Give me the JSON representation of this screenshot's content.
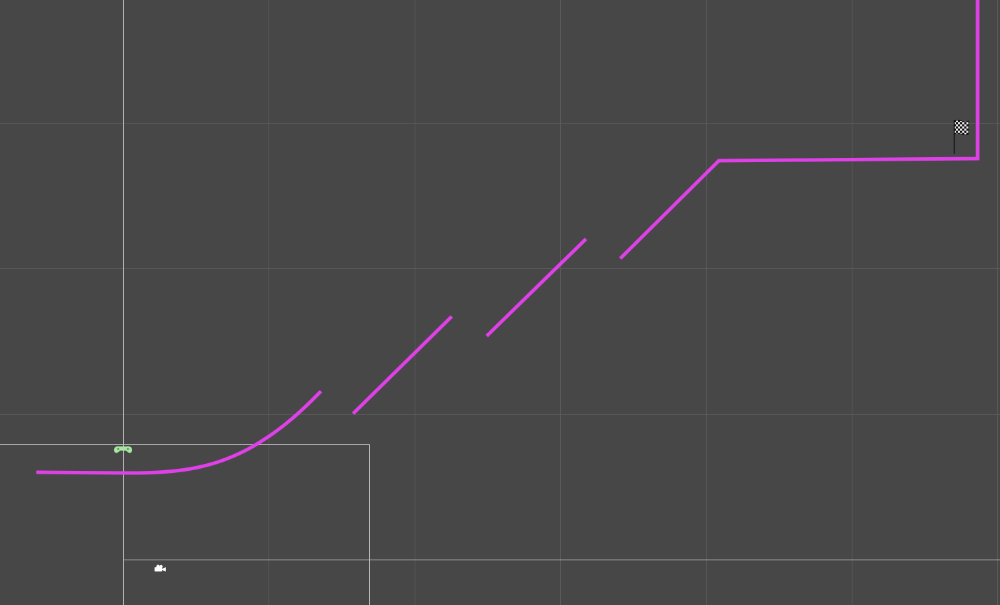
{
  "scene": {
    "background": "#474747",
    "grid_color": "#5a5a5a",
    "axis_color": "#bdbdbd",
    "camera_frame_color": "#c4c4c4",
    "track_color": "#e040e8"
  },
  "icons": {
    "player": "gamepad-icon",
    "camera": "camera-icon",
    "goal": "checkered-flag-icon"
  },
  "colors": {
    "player_icon": "#a6e6a0",
    "camera_icon": "#ffffff",
    "flag_icon": "#111111"
  }
}
